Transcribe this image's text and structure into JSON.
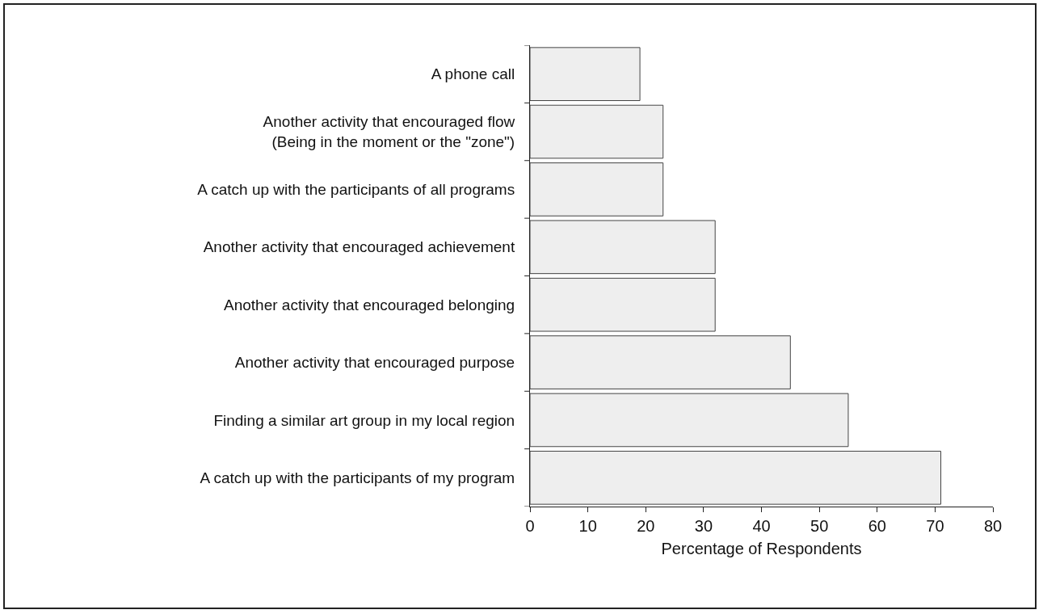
{
  "chart_data": {
    "type": "bar",
    "orientation": "horizontal",
    "xlabel": "Percentage of Respondents",
    "categories": [
      "A phone call",
      "Another activity that encouraged flow\n(Being in the moment or the \"zone\")",
      "A catch up with the participants of all programs",
      "Another activity that encouraged achievement",
      "Another activity that encouraged belonging",
      "Another activity that encouraged purpose",
      "Finding a similar art group in my local region",
      "A catch up with the participants of my program"
    ],
    "values": [
      19,
      23,
      23,
      32,
      32,
      45,
      55,
      71
    ],
    "color": "#eeeeee",
    "xlim": [
      0,
      80
    ],
    "xticks": [
      0,
      10,
      20,
      30,
      40,
      50,
      60,
      70,
      80
    ],
    "grid": false,
    "legend": false
  }
}
